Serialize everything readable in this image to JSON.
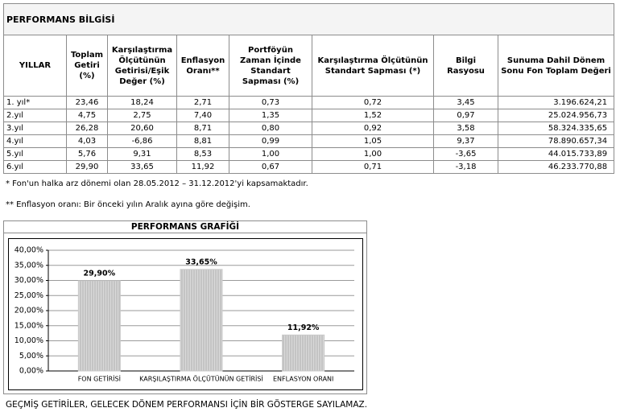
{
  "header": {
    "title": "PERFORMANS BİLGİSİ"
  },
  "table": {
    "columns": [
      "YILLAR",
      "Toplam Getiri (%)",
      "Karşılaştırma Ölçütünün Getirisi/Eşik Değer (%)",
      "Enflasyon Oranı**",
      "Portföyün Zaman İçinde Standart Sapması (%)",
      "Karşılaştırma Ölçütünün Standart Sapması (*)",
      "Bilgi Rasyosu",
      "Sunuma Dahil Dönem Sonu Fon Toplam Değeri"
    ],
    "rows": [
      [
        "1. yıl*",
        "23,46",
        "18,24",
        "2,71",
        "0,73",
        "0,72",
        "3,45",
        "3.196.624,21"
      ],
      [
        "2.yıl",
        "4,75",
        "2,75",
        "7,40",
        "1,35",
        "1,52",
        "0,97",
        "25.024.956,73"
      ],
      [
        "3.yıl",
        "26,28",
        "20,60",
        "8,71",
        "0,80",
        "0,92",
        "3,58",
        "58.324.335,65"
      ],
      [
        "4.yıl",
        "4,03",
        "-6,86",
        "8,81",
        "0,99",
        "1,05",
        "9,37",
        "78.890.657,34"
      ],
      [
        "5.yıl",
        "5,76",
        "9,31",
        "8,53",
        "1,00",
        "1,00",
        "-3,65",
        "44.015.733,89"
      ],
      [
        "6.yıl",
        "29,90",
        "33,65",
        "11,92",
        "0,67",
        "0,71",
        "-3,18",
        "46.233.770,88"
      ]
    ]
  },
  "notes": [
    "* Fon'un halka arz dönemi olan 28.05.2012 – 31.12.2012'yi kapsamaktadır.",
    "** Enflasyon oranı: Bir önceki yılın Aralık ayına göre değişim."
  ],
  "chart_data": {
    "type": "bar",
    "title": "PERFORMANS GRAFİĞİ",
    "categories": [
      "FON GETİRİSİ",
      "KARŞILAŞTIRMA ÖLÇÜTÜNÜN GETİRİSİ",
      "ENFLASYON ORANI"
    ],
    "values": [
      29.9,
      33.65,
      11.92
    ],
    "value_labels": [
      "29,90%",
      "33,65%",
      "11,92%"
    ],
    "color": "#c8c8c8",
    "ylim": [
      0,
      40
    ],
    "yticks": [
      {
        "value": 0,
        "label": "0,00%"
      },
      {
        "value": 5,
        "label": "5,00%"
      },
      {
        "value": 10,
        "label": "10,00%"
      },
      {
        "value": 15,
        "label": "15,00%"
      },
      {
        "value": 20,
        "label": "20,00%"
      },
      {
        "value": 25,
        "label": "25,00%"
      },
      {
        "value": 30,
        "label": "30,00%"
      },
      {
        "value": 35,
        "label": "35,00%"
      },
      {
        "value": 40,
        "label": "40,00%"
      }
    ],
    "grid": true
  },
  "footer": "GEÇMİŞ GETİRİLER, GELECEK DÖNEM PERFORMANSI İÇİN BİR GÖSTERGE SAYILAMAZ."
}
